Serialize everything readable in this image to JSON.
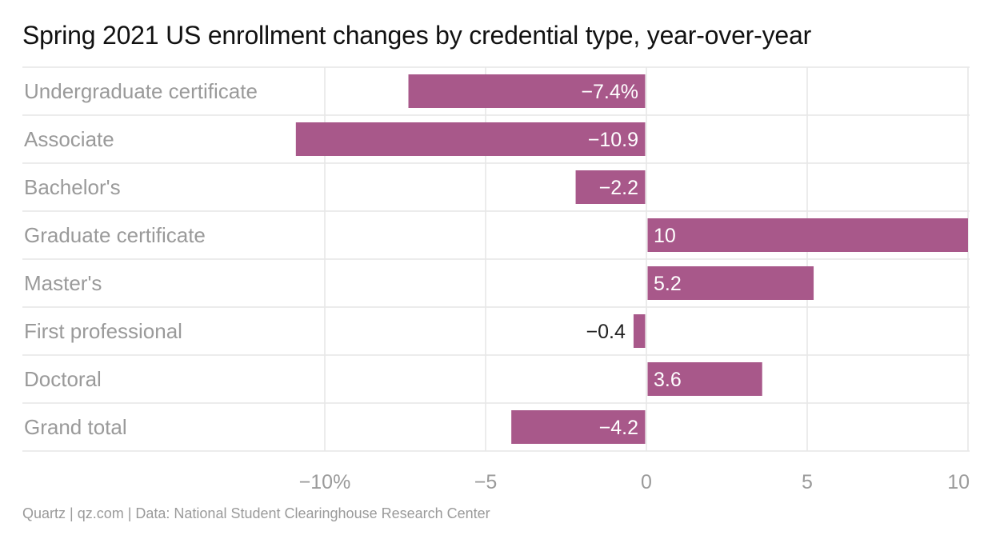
{
  "title": "Spring 2021 US enrollment changes by credential type, year-over-year",
  "footer": "Quartz | qz.com | Data: National Student Clearinghouse Research Center",
  "chart_data": {
    "type": "bar",
    "orientation": "horizontal",
    "title": "Spring 2021 US enrollment changes by credential type, year-over-year",
    "xlabel": "",
    "ylabel": "",
    "xlim": [
      -10,
      10
    ],
    "ticks": [
      -10,
      -5,
      0,
      5,
      10
    ],
    "tick_labels": [
      "−10%",
      "−5",
      "0",
      "5",
      "10"
    ],
    "grid": true,
    "categories": [
      "Undergraduate certificate",
      "Associate",
      "Bachelor's",
      "Graduate certificate",
      "Master's",
      "First professional",
      "Doctoral",
      "Grand total"
    ],
    "values": [
      -7.4,
      -10.9,
      -2.2,
      10,
      5.2,
      -0.4,
      3.6,
      -4.2
    ],
    "value_labels": [
      "−7.4%",
      "−10.9",
      "−2.2",
      "10",
      "5.2",
      "−0.4",
      "3.6",
      "−4.2"
    ],
    "bar_color": "#a8588a",
    "label_color_inside": "#ffffff",
    "label_color_outside": "#222222",
    "row_label_color": "#9a9a9a"
  }
}
